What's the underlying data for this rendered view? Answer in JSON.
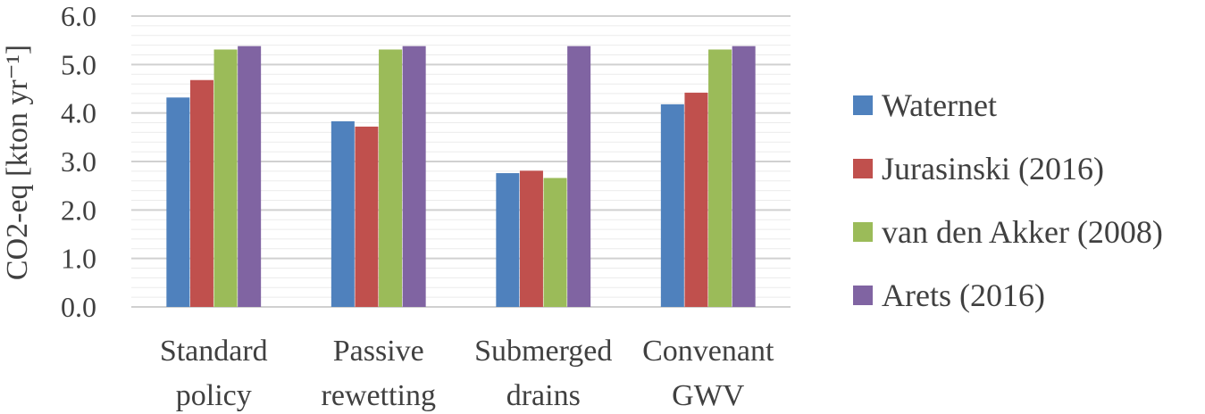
{
  "chart_data": {
    "type": "bar",
    "title": "",
    "xlabel": "",
    "ylabel": "CO2-eq [kton yr⁻¹]",
    "ylim": [
      0,
      6
    ],
    "yticks": [
      "0.0",
      "1.0",
      "2.0",
      "3.0",
      "4.0",
      "5.0",
      "6.0"
    ],
    "grid": true,
    "legend_position": "right",
    "categories": [
      [
        "Standard",
        "policy"
      ],
      [
        "Passive",
        "rewetting"
      ],
      [
        "Submerged",
        "drains"
      ],
      [
        "Convenant",
        "GWV"
      ]
    ],
    "series": [
      {
        "name": "Waternet",
        "color": "#4f81bd",
        "values": [
          4.32,
          3.83,
          2.76,
          4.18
        ]
      },
      {
        "name": "Jurasinski (2016)",
        "color": "#c0504d",
        "values": [
          4.68,
          3.72,
          2.81,
          4.42
        ]
      },
      {
        "name": "van den Akker (2008)",
        "color": "#9bbb59",
        "values": [
          5.31,
          5.31,
          2.66,
          5.31
        ]
      },
      {
        "name": "Arets (2016)",
        "color": "#8064a2",
        "values": [
          5.38,
          5.38,
          5.38,
          5.38
        ]
      }
    ]
  }
}
